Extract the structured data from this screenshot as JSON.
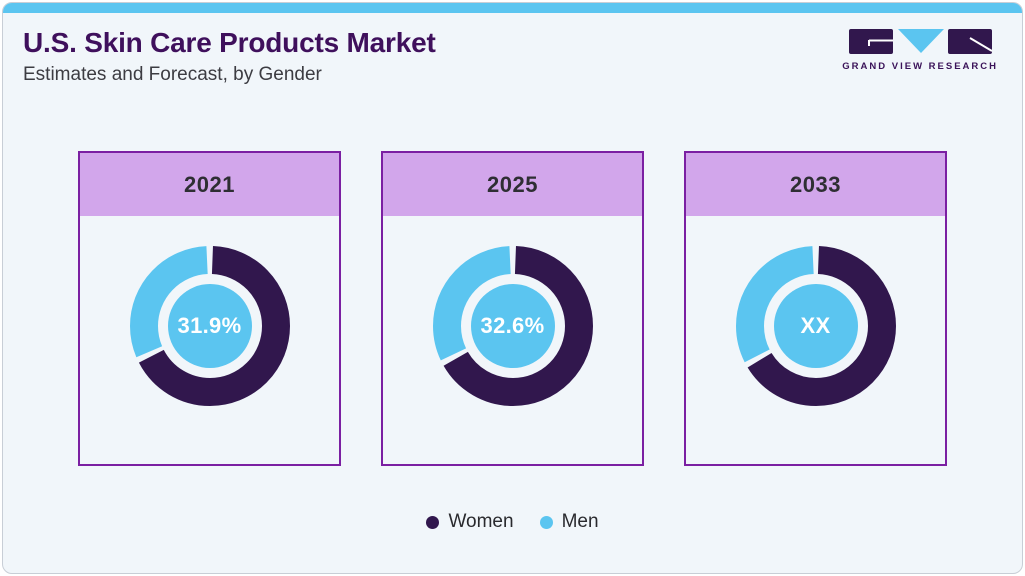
{
  "header": {
    "title": "U.S. Skin Care Products Market",
    "subtitle": "Estimates and Forecast, by Gender"
  },
  "logo": {
    "text": "GRAND VIEW RESEARCH"
  },
  "colors": {
    "accent_bar": "#5BC5F0",
    "frame_border": "#C8CED6",
    "background": "#F1F6FA",
    "title": "#3F105C",
    "card_border": "#7B1FA2",
    "card_header_bg": "#D2A6EB",
    "women": "#31174D",
    "men": "#5BC5F0",
    "center_text": "#FFFFFF"
  },
  "chart_data": {
    "type": "pie",
    "subtype": "donut",
    "title": "U.S. Skin Care Products Market",
    "subtitle": "Estimates and Forecast, by Gender",
    "legend_position": "bottom",
    "legend": [
      {
        "label": "Women",
        "color": "#31174D"
      },
      {
        "label": "Men",
        "color": "#5BC5F0"
      }
    ],
    "charts": [
      {
        "year": "2021",
        "center_label": "31.9%",
        "men_share_pct": 31.9,
        "women_share_pct": 68.1
      },
      {
        "year": "2025",
        "center_label": "32.6%",
        "men_share_pct": 32.6,
        "women_share_pct": 67.4
      },
      {
        "year": "2033",
        "center_label": "XX",
        "men_share_pct": 33.0,
        "women_share_pct": 67.0
      }
    ]
  }
}
